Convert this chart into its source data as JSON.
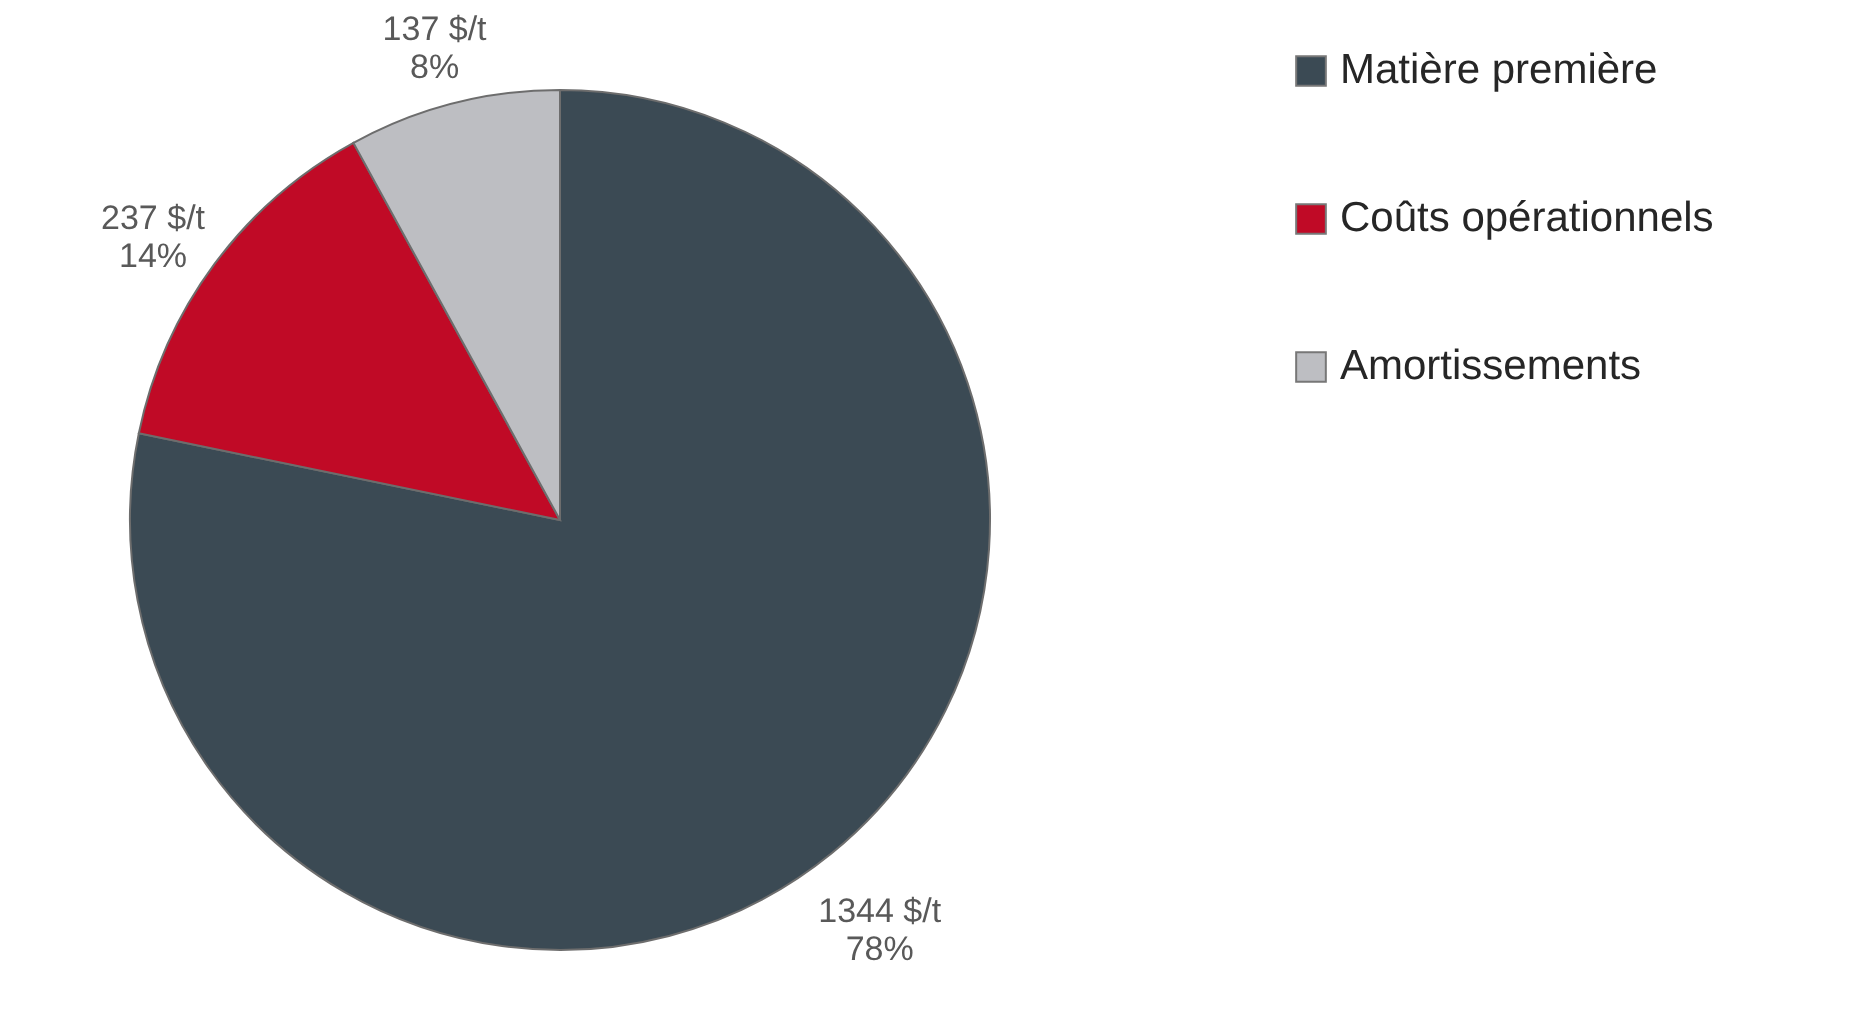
{
  "chart_data": {
    "type": "pie",
    "categories": [
      "Matière première",
      "Coûts opérationnels",
      "Amortissements"
    ],
    "values": [
      1344,
      237,
      137
    ],
    "colors": [
      "#3b4a54",
      "#c00a26",
      "#bdbec2"
    ],
    "value_labels": [
      "1344 $/t\n78%",
      "237 $/t\n14%",
      "137 $/t\n8%"
    ],
    "legend": "right"
  }
}
